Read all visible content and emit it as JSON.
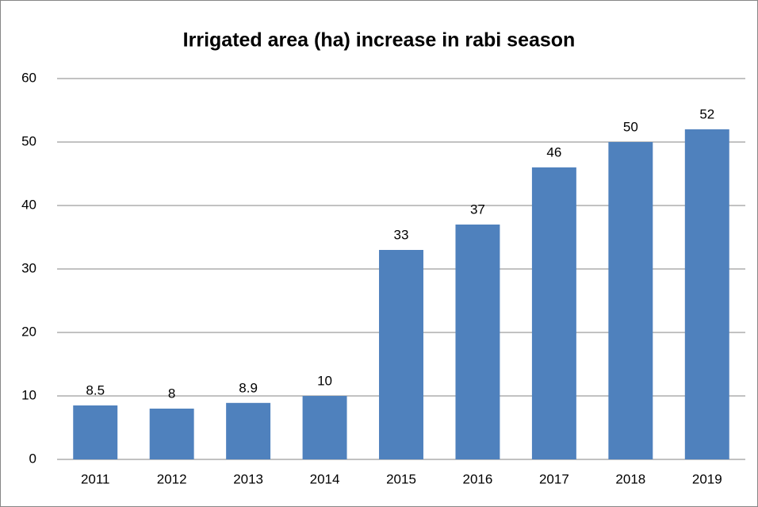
{
  "chart_data": {
    "type": "bar",
    "title": "Irrigated area (ha) increase in rabi season",
    "categories": [
      "2011",
      "2012",
      "2013",
      "2014",
      "2015",
      "2016",
      "2017",
      "2018",
      "2019"
    ],
    "values": [
      8.5,
      8,
      8.9,
      10,
      33,
      37,
      46,
      50,
      52
    ],
    "color": "#4f81bd",
    "ylim": [
      0,
      60
    ],
    "yticks": [
      0,
      10,
      20,
      30,
      40,
      50,
      60
    ],
    "grid": true
  }
}
